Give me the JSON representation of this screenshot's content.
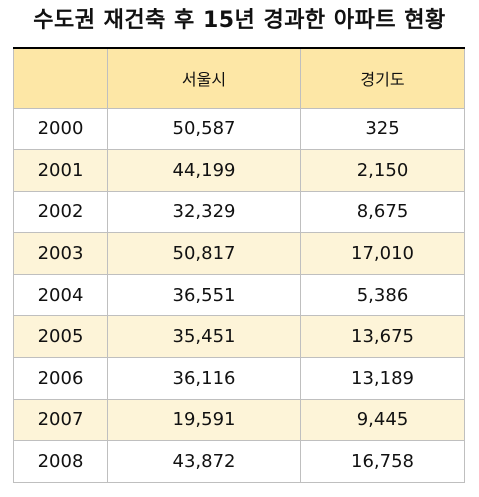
{
  "title": "수도권 재건축 후 15년 경과한 아파트 현황",
  "table": {
    "headers": [
      "",
      "서울시",
      "경기도"
    ],
    "rows": [
      [
        "2000",
        "50,587",
        "325"
      ],
      [
        "2001",
        "44,199",
        "2,150"
      ],
      [
        "2002",
        "32,329",
        "8,675"
      ],
      [
        "2003",
        "50,817",
        "17,010"
      ],
      [
        "2004",
        "36,551",
        "5,386"
      ],
      [
        "2005",
        "35,451",
        "13,675"
      ],
      [
        "2006",
        "36,116",
        "13,189"
      ],
      [
        "2007",
        "19,591",
        "9,445"
      ],
      [
        "2008",
        "43,872",
        "16,758"
      ]
    ]
  },
  "colors": {
    "header_bg": "#fde7a6",
    "stripe_bg": "#fdf4d8",
    "row_bg": "#ffffff",
    "grid_line": "#bfbfbf"
  }
}
